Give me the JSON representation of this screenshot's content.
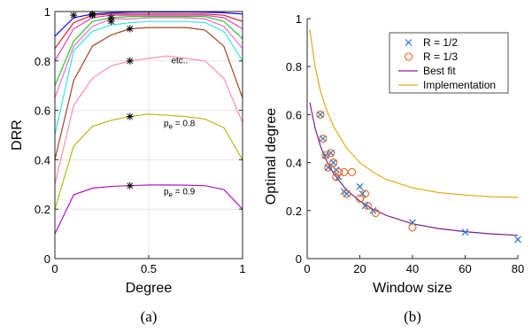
{
  "chart_data": [
    {
      "type": "line",
      "panel_label": "(a)",
      "xlabel": "Degree",
      "ylabel": "DRR",
      "xlim": [
        0,
        1
      ],
      "ylim": [
        0,
        1
      ],
      "xticks": [
        "0",
        "0.5",
        "1"
      ],
      "yticks": [
        "0",
        "0.2",
        "0.4",
        "0.6",
        "0.8",
        "1"
      ],
      "grid": true,
      "x": [
        0,
        0.1,
        0.2,
        0.3,
        0.4,
        0.5,
        0.6,
        0.7,
        0.8,
        0.9,
        1.0
      ],
      "series": [
        {
          "color": "#0000ff",
          "values": [
            0.9,
            0.975,
            0.99,
            0.995,
            0.997,
            0.998,
            0.998,
            0.998,
            0.997,
            0.995,
            0.99
          ]
        },
        {
          "color": "#e81a1a",
          "values": [
            0.85,
            0.955,
            0.985,
            0.99,
            0.99,
            0.99,
            0.99,
            0.99,
            0.99,
            0.985,
            0.96
          ]
        },
        {
          "color": "#d93fbf",
          "values": [
            0.8,
            0.93,
            0.975,
            0.985,
            0.985,
            0.985,
            0.985,
            0.985,
            0.985,
            0.975,
            0.93
          ]
        },
        {
          "color": "#22cc22",
          "values": [
            0.7,
            0.88,
            0.96,
            0.975,
            0.98,
            0.98,
            0.98,
            0.98,
            0.98,
            0.96,
            0.89
          ]
        },
        {
          "color": "#ff66cc",
          "values": [
            0.65,
            0.86,
            0.94,
            0.97,
            0.97,
            0.975,
            0.975,
            0.975,
            0.97,
            0.94,
            0.85
          ]
        },
        {
          "color": "#33e6e6",
          "values": [
            0.5,
            0.84,
            0.92,
            0.945,
            0.955,
            0.96,
            0.96,
            0.96,
            0.955,
            0.92,
            0.8
          ]
        },
        {
          "color": "#a0461e",
          "values": [
            0.4,
            0.72,
            0.86,
            0.905,
            0.93,
            0.935,
            0.935,
            0.935,
            0.925,
            0.86,
            0.65
          ]
        },
        {
          "color": "#ff8ca8",
          "values": [
            0.3,
            0.62,
            0.73,
            0.78,
            0.8,
            0.81,
            0.82,
            0.81,
            0.8,
            0.73,
            0.55
          ]
        },
        {
          "color": "#b8b81a",
          "values": [
            0.2,
            0.455,
            0.535,
            0.56,
            0.575,
            0.585,
            0.58,
            0.575,
            0.565,
            0.53,
            0.4
          ]
        },
        {
          "color": "#aa1abf",
          "values": [
            0.1,
            0.258,
            0.285,
            0.292,
            0.295,
            0.298,
            0.298,
            0.297,
            0.295,
            0.28,
            0.2
          ]
        }
      ],
      "markers": [
        {
          "x": 0.1,
          "y": 0.985
        },
        {
          "x": 0.2,
          "y": 0.99
        },
        {
          "x": 0.2,
          "y": 0.985
        },
        {
          "x": 0.3,
          "y": 0.975
        },
        {
          "x": 0.3,
          "y": 0.96
        },
        {
          "x": 0.4,
          "y": 0.93
        },
        {
          "x": 0.4,
          "y": 0.8
        },
        {
          "x": 0.4,
          "y": 0.575
        },
        {
          "x": 0.4,
          "y": 0.295
        }
      ],
      "annotations": [
        {
          "text": "etc..",
          "x": 0.62,
          "y": 0.79
        },
        {
          "main": "p",
          "sub": "e",
          "rest": " = 0.8",
          "x": 0.58,
          "y": 0.535
        },
        {
          "main": "p",
          "sub": "e",
          "rest": " = 0.9",
          "x": 0.58,
          "y": 0.26
        }
      ]
    },
    {
      "type": "scatter",
      "panel_label": "(b)",
      "xlabel": "Window size",
      "ylabel": "Optimal degree",
      "xlim": [
        0,
        80
      ],
      "ylim": [
        0,
        1
      ],
      "xticks": [
        "0",
        "20",
        "40",
        "60",
        "80"
      ],
      "yticks": [
        "0",
        "0.2",
        "0.4",
        "0.6",
        "0.8",
        "1"
      ],
      "grid": false,
      "legend_position": "top-right",
      "legend": [
        "R = 1/2",
        "R = 1/3",
        "Best fit",
        "Implementation"
      ],
      "series": [
        {
          "name": "R = 1/2",
          "marker": "x",
          "color": "#1f77d4",
          "x": [
            5,
            6,
            7,
            8,
            9,
            10,
            11,
            12,
            14,
            15,
            20,
            21,
            22,
            25,
            40,
            60,
            80
          ],
          "y": [
            0.6,
            0.5,
            0.43,
            0.38,
            0.44,
            0.4,
            0.37,
            0.34,
            0.28,
            0.27,
            0.3,
            0.27,
            0.22,
            0.2,
            0.15,
            0.11,
            0.08
          ]
        },
        {
          "name": "R = 1/3",
          "marker": "o",
          "color": "#e0621f",
          "x": [
            5,
            6,
            7,
            8,
            9,
            10,
            11,
            12,
            14,
            15,
            17,
            20,
            22,
            23,
            26,
            40
          ],
          "y": [
            0.6,
            0.5,
            0.43,
            0.38,
            0.44,
            0.4,
            0.34,
            0.36,
            0.36,
            0.27,
            0.36,
            0.25,
            0.27,
            0.22,
            0.19,
            0.13
          ]
        },
        {
          "name": "Best fit",
          "marker": "line",
          "color": "#7e1f8e",
          "x": [
            1,
            3,
            5,
            7,
            10,
            15,
            20,
            25,
            30,
            40,
            50,
            60,
            70,
            80
          ],
          "y": [
            0.65,
            0.545,
            0.47,
            0.415,
            0.355,
            0.285,
            0.24,
            0.205,
            0.18,
            0.145,
            0.125,
            0.112,
            0.103,
            0.097
          ]
        },
        {
          "name": "Implementation",
          "marker": "line",
          "color": "#e6a817",
          "x": [
            1,
            3,
            5,
            7,
            10,
            15,
            20,
            25,
            30,
            40,
            50,
            60,
            70,
            80
          ],
          "y": [
            0.955,
            0.8,
            0.7,
            0.63,
            0.55,
            0.46,
            0.4,
            0.36,
            0.33,
            0.295,
            0.275,
            0.265,
            0.258,
            0.255
          ]
        }
      ]
    }
  ]
}
